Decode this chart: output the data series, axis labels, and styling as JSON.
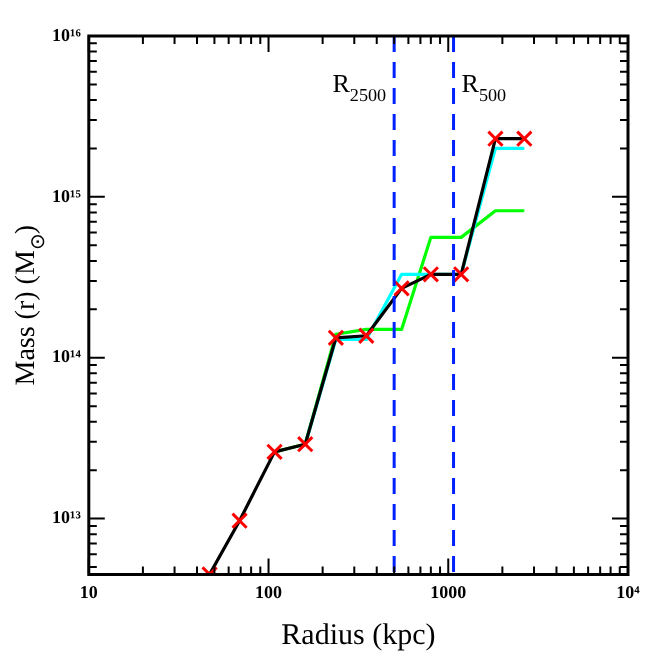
{
  "chart_data": {
    "type": "line",
    "xlabel": "Radius (kpc)",
    "ylabel": "Mass (r) (M$_{⊙}$)",
    "log": "xy",
    "grid": false,
    "legend": false,
    "xlim": [
      10,
      10000
    ],
    "ylim": [
      4500000000000.0,
      1e+16
    ],
    "xticks": [
      10,
      {
        "value": 20,
        "label": null
      },
      {
        "value": 30,
        "label": null
      },
      {
        "value": 40,
        "label": null
      },
      {
        "value": 50,
        "label": null
      },
      {
        "value": 60,
        "label": null
      },
      {
        "value": 70,
        "label": null
      },
      {
        "value": 80,
        "label": null
      },
      {
        "value": 90,
        "label": null
      },
      100,
      {
        "value": 200,
        "label": null
      },
      {
        "value": 300,
        "label": null
      },
      {
        "value": 400,
        "label": null
      },
      {
        "value": 500,
        "label": null
      },
      {
        "value": 600,
        "label": null
      },
      {
        "value": 700,
        "label": null
      },
      {
        "value": 800,
        "label": null
      },
      {
        "value": 900,
        "label": null
      },
      1000,
      {
        "value": 2000,
        "label": null
      },
      {
        "value": 3000,
        "label": null
      },
      {
        "value": 4000,
        "label": null
      },
      {
        "value": 5000,
        "label": null
      },
      {
        "value": 6000,
        "label": null
      },
      {
        "value": 7000,
        "label": null
      },
      {
        "value": 8000,
        "label": null
      },
      {
        "value": 9000,
        "label": null
      },
      {
        "value": 10000,
        "label": "10⁴"
      }
    ],
    "yticks": [
      {
        "value": 5000000000000.0,
        "label": null
      },
      {
        "value": 6000000000000.0,
        "label": null
      },
      {
        "value": 7000000000000.0,
        "label": null
      },
      {
        "value": 8000000000000.0,
        "label": null
      },
      {
        "value": 9000000000000.0,
        "label": null
      },
      {
        "value": 10000000000000.0,
        "label": "10¹³"
      },
      {
        "value": 20000000000000.0,
        "label": null
      },
      {
        "value": 30000000000000.0,
        "label": null
      },
      {
        "value": 40000000000000.0,
        "label": null
      },
      {
        "value": 50000000000000.0,
        "label": null
      },
      {
        "value": 60000000000000.0,
        "label": null
      },
      {
        "value": 70000000000000.0,
        "label": null
      },
      {
        "value": 80000000000000.0,
        "label": null
      },
      {
        "value": 90000000000000.0,
        "label": null
      },
      {
        "value": 100000000000000.0,
        "label": "10¹⁴"
      },
      {
        "value": 200000000000000.0,
        "label": null
      },
      {
        "value": 300000000000000.0,
        "label": null
      },
      {
        "value": 400000000000000.0,
        "label": null
      },
      {
        "value": 500000000000000.0,
        "label": null
      },
      {
        "value": 600000000000000.0,
        "label": null
      },
      {
        "value": 700000000000000.0,
        "label": null
      },
      {
        "value": 800000000000000.0,
        "label": null
      },
      {
        "value": 900000000000000.0,
        "label": null
      },
      {
        "value": 1000000000000000.0,
        "label": "10¹⁵"
      },
      {
        "value": 2000000000000000.0,
        "label": null
      },
      {
        "value": 3000000000000000.0,
        "label": null
      },
      {
        "value": 4000000000000000.0,
        "label": null
      },
      {
        "value": 5000000000000000.0,
        "label": null
      },
      {
        "value": 6000000000000000.0,
        "label": null
      },
      {
        "value": 7000000000000000.0,
        "label": null
      },
      {
        "value": 8000000000000000.0,
        "label": null
      },
      {
        "value": 9000000000000000.0,
        "label": null
      },
      {
        "value": 1e+16,
        "label": "10¹⁶"
      }
    ],
    "ref_lines": [
      {
        "axis": "x",
        "value": 500,
        "label": "R$_{2500}$",
        "color": "#0022ff",
        "line_style": "dashed"
      },
      {
        "axis": "x",
        "value": 1070,
        "label": "R$_{500}$",
        "color": "#0022ff",
        "line_style": "dashed"
      }
    ],
    "series": [
      {
        "type": "line",
        "color": "#00ff00",
        "marker": "none",
        "x": [
          108,
          160,
          237,
          350,
          550,
          800,
          1180,
          1830,
          2650
        ],
        "values": [
          26000000000000.0,
          29000000000000.0,
          140000000000000.0,
          150000000000000.0,
          150000000000000.0,
          560000000000000.0,
          560000000000000.0,
          820000000000000.0,
          820000000000000.0
        ]
      },
      {
        "type": "line",
        "color": "#00ffff",
        "marker": "none",
        "x": [
          160,
          237,
          350,
          550,
          800,
          1180,
          1830,
          2650
        ],
        "values": [
          29000000000000.0,
          130000000000000.0,
          130000000000000.0,
          330000000000000.0,
          330000000000000.0,
          330000000000000.0,
          2000000000000000.0,
          2000000000000000.0
        ]
      },
      {
        "type": "line",
        "color": "#000000",
        "marker": "none",
        "x": [
          47,
          69,
          108,
          160,
          237,
          350,
          550,
          800,
          1180,
          1830,
          2650
        ],
        "values": [
          4500000000000.0,
          9700000000000.0,
          26000000000000.0,
          29000000000000.0,
          133000000000000.0,
          137000000000000.0,
          270000000000000.0,
          330000000000000.0,
          330000000000000.0,
          2300000000000000.0,
          2300000000000000.0
        ]
      },
      {
        "type": "scatter",
        "color": "#ff0000",
        "marker": "cross",
        "x": [
          47,
          69,
          108,
          160,
          237,
          350,
          550,
          800,
          1180,
          1830,
          2650
        ],
        "values": [
          4500000000000.0,
          9700000000000.0,
          26000000000000.0,
          29000000000000.0,
          133000000000000.0,
          137000000000000.0,
          270000000000000.0,
          330000000000000.0,
          330000000000000.0,
          2300000000000000.0,
          2300000000000000.0
        ]
      }
    ]
  }
}
